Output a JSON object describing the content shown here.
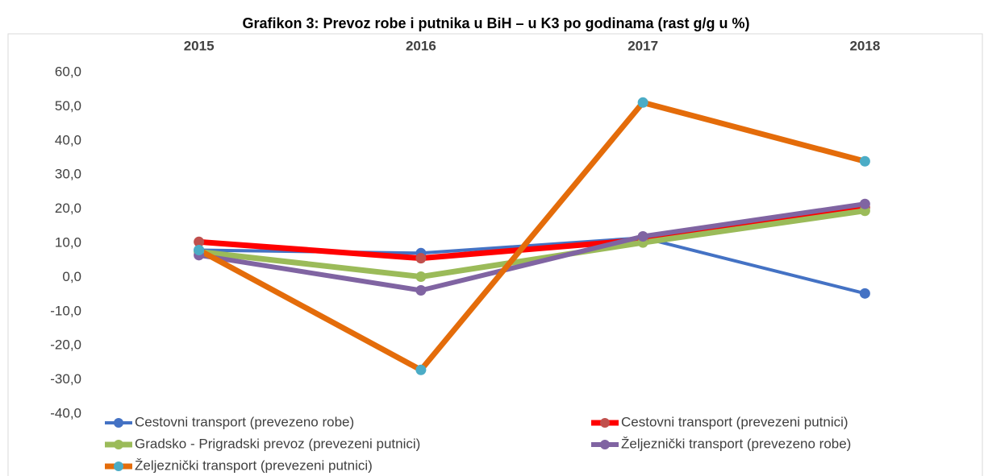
{
  "chart_data": {
    "type": "line",
    "title": "Grafikon 3: Prevoz robe i putnika u BiH – u K3 po godinama (rast g/g u %)",
    "categories": [
      "2015",
      "2016",
      "2017",
      "2018"
    ],
    "ylim": [
      -40,
      60
    ],
    "yticks": [
      {
        "value": -40,
        "label": "-40,0"
      },
      {
        "value": -30,
        "label": "-30,0"
      },
      {
        "value": -20,
        "label": "-20,0"
      },
      {
        "value": -10,
        "label": "-10,0"
      },
      {
        "value": 0,
        "label": "0,0"
      },
      {
        "value": 10,
        "label": "10,0"
      },
      {
        "value": 20,
        "label": "20,0"
      },
      {
        "value": 30,
        "label": "30,0"
      },
      {
        "value": 40,
        "label": "40,0"
      },
      {
        "value": 50,
        "label": "50,0"
      },
      {
        "value": 60,
        "label": "60,0"
      }
    ],
    "grid": false,
    "legend": "bottom",
    "series": [
      {
        "name": "Cestovni transport (prevezeno robe)",
        "color": "#4472c4",
        "marker_color": "#4472c4",
        "values": [
          8.0,
          7.1,
          11.6,
          -4.7
        ]
      },
      {
        "name": "Cestovni transport (prevezeni putnici)",
        "color": "#ff0000",
        "marker_color": "#c0504d",
        "values": [
          10.4,
          5.6,
          11.0,
          20.5
        ]
      },
      {
        "name": "Gradsko - Prigradski prevoz (prevezeni putnici)",
        "color": "#9bbb59",
        "marker_color": "#9bbb59",
        "values": [
          7.5,
          0.2,
          10.2,
          19.5
        ]
      },
      {
        "name": "Željeznički transport (prevezeno robe)",
        "color": "#8064a2",
        "marker_color": "#8064a2",
        "values": [
          6.5,
          -3.8,
          12.0,
          21.5
        ]
      },
      {
        "name": "Željeznički transport (prevezeni putnici)",
        "color": "#e46c0a",
        "marker_color": "#4bacc6",
        "values": [
          8.0,
          -27.1,
          51.2,
          34.0
        ]
      }
    ]
  }
}
